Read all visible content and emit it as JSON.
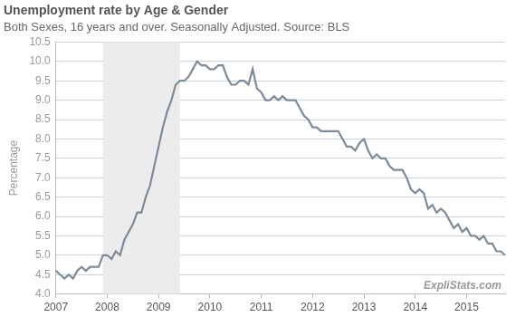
{
  "chart_data": {
    "type": "line",
    "title": "Unemployment rate by Age & Gender",
    "subtitle": "Both Sexes, 16 years and over. Seasonally Adjusted. Source: BLS",
    "y_label": "Percentage",
    "annotation": "ExpliStats.com",
    "color": "#7d8a97",
    "grid": true,
    "categories": [
      "2007",
      null,
      null,
      null,
      null,
      null,
      null,
      null,
      null,
      null,
      null,
      null,
      "2008",
      null,
      null,
      null,
      null,
      null,
      null,
      null,
      null,
      null,
      null,
      null,
      "2009",
      null,
      null,
      null,
      null,
      null,
      null,
      null,
      null,
      null,
      null,
      null,
      "2010",
      null,
      null,
      null,
      null,
      null,
      null,
      null,
      null,
      null,
      null,
      null,
      "2011",
      null,
      null,
      null,
      null,
      null,
      null,
      null,
      null,
      null,
      null,
      null,
      "2012",
      null,
      null,
      null,
      null,
      null,
      null,
      null,
      null,
      null,
      null,
      null,
      "2013",
      null,
      null,
      null,
      null,
      null,
      null,
      null,
      null,
      null,
      null,
      null,
      "2014",
      null,
      null,
      null,
      null,
      null,
      null,
      null,
      null,
      null,
      null,
      null,
      "2015",
      null,
      null,
      null,
      null,
      null,
      null,
      null,
      null,
      null
    ],
    "values": [
      4.6,
      4.5,
      4.4,
      4.5,
      4.4,
      4.6,
      4.7,
      4.6,
      4.7,
      4.7,
      4.7,
      5.0,
      5.0,
      4.9,
      5.1,
      5.0,
      5.4,
      5.6,
      5.8,
      6.1,
      6.1,
      6.5,
      6.8,
      7.3,
      7.8,
      8.3,
      8.7,
      9.0,
      9.4,
      9.5,
      9.5,
      9.6,
      9.8,
      10.0,
      9.9,
      9.9,
      9.8,
      9.8,
      9.9,
      9.9,
      9.6,
      9.4,
      9.4,
      9.5,
      9.5,
      9.4,
      9.8,
      9.3,
      9.2,
      9.0,
      9.0,
      9.1,
      9.0,
      9.1,
      9.0,
      9.0,
      9.0,
      8.8,
      8.6,
      8.5,
      8.3,
      8.3,
      8.2,
      8.2,
      8.2,
      8.2,
      8.2,
      8.0,
      7.8,
      7.8,
      7.7,
      7.9,
      8.0,
      7.7,
      7.5,
      7.6,
      7.5,
      7.5,
      7.3,
      7.2,
      7.2,
      7.2,
      7.0,
      6.7,
      6.6,
      6.7,
      6.6,
      6.2,
      6.3,
      6.1,
      6.2,
      6.1,
      5.9,
      5.7,
      5.8,
      5.6,
      5.7,
      5.5,
      5.5,
      5.4,
      5.5,
      5.3,
      5.3,
      5.1,
      5.1,
      5.0
    ],
    "shaded_range": [
      11,
      29
    ],
    "ylim": [
      4,
      10.5
    ],
    "yticks": [
      {
        "value": 4,
        "label": "4.0"
      },
      4.5,
      {
        "value": 5,
        "label": "5.0"
      },
      5.5,
      {
        "value": 6,
        "label": "6.0"
      },
      6.5,
      {
        "value": 7,
        "label": "7.0"
      },
      7.5,
      {
        "value": 8,
        "label": "8.0"
      },
      8.5,
      {
        "value": 9,
        "label": "9.0"
      },
      9.5,
      {
        "value": 10,
        "label": "10.0"
      },
      10.5
    ]
  }
}
